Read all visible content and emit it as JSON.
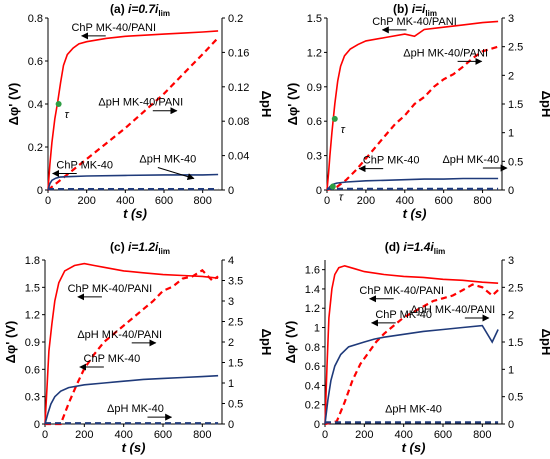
{
  "chart_data": [
    {
      "type": "line",
      "panel_label": "(a) ",
      "title_main": "i=0.7i",
      "title_sub": "lim",
      "xlabel": "t (s)",
      "ylabel": "Δφ' (V)",
      "y2label": "ΔpH",
      "xlim": [
        0,
        900
      ],
      "ylim": [
        0,
        0.8
      ],
      "y2lim": [
        0,
        0.2
      ],
      "xticks": [
        "0",
        "200",
        "400",
        "600",
        "800"
      ],
      "yticks": [
        "0",
        "0.2",
        "0.4",
        "0.6",
        "0.8"
      ],
      "y2ticks": [
        "0",
        "0.04",
        "0.08",
        "0.12",
        "0.16",
        "0.2"
      ],
      "grid": false,
      "series": [
        {
          "name": "ChP MK-40/PANI",
          "axis": "left",
          "color": "#ff0000",
          "style": "solid",
          "x": [
            0,
            10,
            20,
            35,
            50,
            65,
            80,
            100,
            130,
            160,
            200,
            300,
            400,
            500,
            600,
            700,
            800,
            880
          ],
          "y": [
            0,
            0.12,
            0.22,
            0.33,
            0.41,
            0.5,
            0.58,
            0.63,
            0.66,
            0.68,
            0.69,
            0.705,
            0.715,
            0.72,
            0.725,
            0.73,
            0.735,
            0.74
          ]
        },
        {
          "name": "ΔpH MK-40/PANI",
          "axis": "right",
          "color": "#ff0000",
          "style": "dashed",
          "x": [
            0,
            100,
            200,
            300,
            400,
            500,
            600,
            700,
            800,
            880
          ],
          "y": [
            0,
            0.018,
            0.036,
            0.054,
            0.072,
            0.092,
            0.112,
            0.135,
            0.158,
            0.177
          ]
        },
        {
          "name": "ChP MK-40",
          "axis": "left",
          "color": "#1f3a7a",
          "style": "solid",
          "x": [
            0,
            10,
            20,
            40,
            60,
            100,
            200,
            400,
            600,
            800,
            880
          ],
          "y": [
            0,
            0.03,
            0.045,
            0.055,
            0.06,
            0.062,
            0.065,
            0.068,
            0.07,
            0.07,
            0.072
          ]
        },
        {
          "name": "ΔpH MK-40",
          "axis": "right",
          "color": "#1f3a7a",
          "style": "dashed",
          "x": [
            0,
            880
          ],
          "y": [
            0.001,
            0.001
          ]
        }
      ],
      "markers": [
        {
          "label": "τ",
          "x": 55,
          "y": 0.4,
          "color": "#2e9e44"
        }
      ]
    },
    {
      "type": "line",
      "panel_label": "(b) ",
      "title_main": "i=i",
      "title_sub": "lim",
      "xlabel": "t (s)",
      "ylabel": "Δφ' (V)",
      "y2label": "ΔpH",
      "xlim": [
        0,
        900
      ],
      "ylim": [
        0,
        1.5
      ],
      "y2lim": [
        0,
        3
      ],
      "xticks": [
        "0",
        "200",
        "400",
        "600",
        "800"
      ],
      "yticks": [
        "0",
        "0.3",
        "0.6",
        "0.9",
        "1.2",
        "1.5"
      ],
      "y2ticks": [
        "0",
        "0.5",
        "1",
        "1.5",
        "2",
        "2.5",
        "3"
      ],
      "grid": false,
      "series": [
        {
          "name": "ChP MK-40/PANI",
          "axis": "left",
          "color": "#ff0000",
          "style": "solid",
          "x": [
            0,
            8,
            15,
            25,
            40,
            55,
            70,
            90,
            120,
            160,
            200,
            300,
            400,
            450,
            500,
            600,
            700,
            800,
            880
          ],
          "y": [
            0,
            0.15,
            0.3,
            0.5,
            0.75,
            0.95,
            1.08,
            1.17,
            1.23,
            1.27,
            1.3,
            1.33,
            1.36,
            1.34,
            1.4,
            1.42,
            1.44,
            1.46,
            1.47
          ]
        },
        {
          "name": "ΔpH MK-40/PANI",
          "axis": "right",
          "color": "#ff0000",
          "style": "dashed",
          "x": [
            0,
            50,
            100,
            150,
            200,
            250,
            300,
            350,
            400,
            450,
            500,
            550,
            600,
            650,
            700,
            750,
            800,
            880
          ],
          "y": [
            0,
            0.05,
            0.18,
            0.35,
            0.55,
            0.75,
            0.95,
            1.15,
            1.3,
            1.5,
            1.62,
            1.8,
            1.93,
            2.02,
            2.15,
            2.3,
            2.42,
            2.5
          ]
        },
        {
          "name": "ChP MK-40",
          "axis": "left",
          "color": "#1f3a7a",
          "style": "solid",
          "x": [
            0,
            15,
            30,
            50,
            100,
            200,
            300,
            400,
            500,
            600,
            700,
            800,
            880
          ],
          "y": [
            0,
            0.03,
            0.05,
            0.06,
            0.07,
            0.08,
            0.085,
            0.09,
            0.095,
            0.095,
            0.1,
            0.1,
            0.1
          ]
        },
        {
          "name": "ΔpH MK-40",
          "axis": "right",
          "color": "#1f3a7a",
          "style": "dashed",
          "x": [
            0,
            880
          ],
          "y": [
            0.02,
            0.02
          ]
        }
      ],
      "markers": [
        {
          "label": "τ",
          "x": 40,
          "y": 0.62,
          "color": "#2e9e44"
        },
        {
          "label": "τ",
          "x": 30,
          "y": 0.03,
          "color": "#2e9e44"
        }
      ]
    },
    {
      "type": "line",
      "panel_label": "(c) ",
      "title_main": "i=1.2i",
      "title_sub": "lim",
      "xlabel": "t (s)",
      "ylabel": "Δφ' (V)",
      "y2label": "ΔpH",
      "xlim": [
        0,
        900
      ],
      "ylim": [
        0,
        1.8
      ],
      "y2lim": [
        0,
        4
      ],
      "xticks": [
        "0",
        "200",
        "400",
        "600",
        "800"
      ],
      "yticks": [
        "0",
        "0.3",
        "0.6",
        "0.9",
        "1.2",
        "1.5",
        "1.8"
      ],
      "y2ticks": [
        "0",
        "0.5",
        "1",
        "1.5",
        "2",
        "2.5",
        "3",
        "3.5",
        "4"
      ],
      "grid": false,
      "series": [
        {
          "name": "ChP MK-40/PANI",
          "axis": "left",
          "color": "#ff0000",
          "style": "solid",
          "x": [
            0,
            10,
            20,
            35,
            50,
            70,
            100,
            150,
            200,
            250,
            300,
            400,
            500,
            600,
            700,
            800,
            880
          ],
          "y": [
            0,
            0.4,
            0.8,
            1.1,
            1.35,
            1.55,
            1.68,
            1.74,
            1.76,
            1.74,
            1.72,
            1.68,
            1.66,
            1.64,
            1.63,
            1.62,
            1.6
          ]
        },
        {
          "name": "ΔpH MK-40/PANI",
          "axis": "right",
          "color": "#ff0000",
          "style": "dashed",
          "x": [
            0,
            80,
            120,
            160,
            200,
            250,
            300,
            350,
            400,
            450,
            500,
            550,
            600,
            650,
            700,
            750,
            800,
            850,
            880
          ],
          "y": [
            0,
            0,
            0.5,
            0.95,
            1.35,
            1.7,
            2.0,
            2.2,
            2.4,
            2.6,
            2.8,
            3.0,
            3.25,
            3.35,
            3.55,
            3.6,
            3.75,
            3.5,
            3.6
          ]
        },
        {
          "name": "ChP MK-40",
          "axis": "left",
          "color": "#1f3a7a",
          "style": "solid",
          "x": [
            0,
            15,
            30,
            50,
            80,
            120,
            200,
            300,
            400,
            500,
            600,
            700,
            800,
            880
          ],
          "y": [
            0,
            0.12,
            0.22,
            0.3,
            0.36,
            0.4,
            0.43,
            0.45,
            0.47,
            0.49,
            0.5,
            0.51,
            0.52,
            0.53
          ]
        },
        {
          "name": "ΔpH MK-40",
          "axis": "right",
          "color": "#1f3a7a",
          "style": "dashed",
          "x": [
            0,
            880
          ],
          "y": [
            0.02,
            0.02
          ]
        }
      ],
      "markers": []
    },
    {
      "type": "line",
      "panel_label": "(d) ",
      "title_main": "i=1.4i",
      "title_sub": "lim",
      "xlabel": "t (s)",
      "ylabel": "Δφ' (V)",
      "y2label": "ΔpH",
      "xlim": [
        0,
        900
      ],
      "ylim": [
        0,
        1.7
      ],
      "y2lim": [
        0,
        3
      ],
      "xticks": [
        "0",
        "200",
        "400",
        "600",
        "800"
      ],
      "yticks": [
        "0",
        "0.2",
        "0.4",
        "0.6",
        "0.8",
        "1",
        "1.2",
        "1.4",
        "1.6"
      ],
      "y2ticks": [
        "0",
        "0.5",
        "1",
        "1.5",
        "2",
        "2.5",
        "3"
      ],
      "grid": false,
      "series": [
        {
          "name": "ChP MK-40/PANI",
          "axis": "left",
          "color": "#ff0000",
          "style": "solid",
          "x": [
            0,
            10,
            20,
            35,
            50,
            70,
            100,
            150,
            200,
            300,
            400,
            500,
            600,
            700,
            800,
            880
          ],
          "y": [
            0,
            0.6,
            1.1,
            1.4,
            1.55,
            1.62,
            1.64,
            1.61,
            1.58,
            1.55,
            1.53,
            1.52,
            1.5,
            1.49,
            1.47,
            1.46
          ]
        },
        {
          "name": "ΔpH MK-40/PANI",
          "axis": "right",
          "color": "#ff0000",
          "style": "dashed",
          "x": [
            0,
            60,
            100,
            140,
            180,
            220,
            260,
            300,
            350,
            400,
            450,
            500,
            550,
            600,
            650,
            700,
            750,
            800,
            850,
            880
          ],
          "y": [
            0,
            0.05,
            0.4,
            0.8,
            1.1,
            1.3,
            1.5,
            1.65,
            1.8,
            1.95,
            2.05,
            2.15,
            2.25,
            2.3,
            2.35,
            2.45,
            2.55,
            2.5,
            2.35,
            2.45
          ]
        },
        {
          "name": "ChP MK-40",
          "axis": "left",
          "color": "#1f3a7a",
          "style": "solid",
          "x": [
            0,
            15,
            30,
            50,
            80,
            120,
            200,
            250,
            300,
            400,
            500,
            600,
            700,
            800,
            850,
            880
          ],
          "y": [
            0,
            0.25,
            0.45,
            0.6,
            0.72,
            0.8,
            0.85,
            0.88,
            0.9,
            0.93,
            0.96,
            0.98,
            1.0,
            1.02,
            0.85,
            0.98
          ]
        },
        {
          "name": "ΔpH MK-40",
          "axis": "right",
          "color": "#1f3a7a",
          "style": "dashed",
          "x": [
            0,
            880
          ],
          "y": [
            0.03,
            0.03
          ]
        }
      ],
      "markers": []
    }
  ],
  "annotations": [
    [
      {
        "text": "ChP MK-40/PANI",
        "x": 340,
        "y": 0.74,
        "axis": "left",
        "arrow": "left"
      },
      {
        "text": "ΔpH MK-40/PANI",
        "x": 480,
        "y": 0.098,
        "axis": "right",
        "arrow": "right"
      },
      {
        "text": "ChP MK-40",
        "x": 190,
        "y": 0.1,
        "axis": "left",
        "arrow": "left"
      },
      {
        "text": "ΔpH MK-40",
        "x": 620,
        "y": 0.032,
        "axis": "right",
        "arrow": "right-down"
      }
    ],
    [
      {
        "text": "ChP MK-40/PANI",
        "x": 450,
        "y": 1.44,
        "axis": "left",
        "arrow": "left"
      },
      {
        "text": "ΔpH MK-40/PANI",
        "x": 610,
        "y": 2.33,
        "axis": "right",
        "arrow": "right"
      },
      {
        "text": "ChP MK-40",
        "x": 330,
        "y": 0.23,
        "axis": "left",
        "arrow": "left"
      },
      {
        "text": "ΔpH MK-40",
        "x": 740,
        "y": 0.47,
        "axis": "right",
        "arrow": "right"
      }
    ],
    [
      {
        "text": "ChP MK-40/PANI",
        "x": 330,
        "y": 1.45,
        "axis": "left",
        "arrow": "left"
      },
      {
        "text": "ΔpH MK-40/PANI",
        "x": 380,
        "y": 2.1,
        "axis": "right",
        "arrow": "right"
      },
      {
        "text": "ChP MK-40",
        "x": 340,
        "y": 0.68,
        "axis": "left",
        "arrow": "left"
      },
      {
        "text": "ΔpH MK-40",
        "x": 460,
        "y": 0.13,
        "axis": "left",
        "arrow": "right"
      }
    ],
    [
      {
        "text": "ChP MK-40/PANI",
        "x": 390,
        "y": 1.35,
        "axis": "left",
        "arrow": "left"
      },
      {
        "text": "ΔpH MK-40/PANI",
        "x": 650,
        "y": 2.03,
        "axis": "right",
        "arrow": "right"
      },
      {
        "text": "ChP MK-40",
        "x": 400,
        "y": 1.1,
        "axis": "left",
        "arrow": "left"
      },
      {
        "text": "ΔpH MK-40",
        "x": 450,
        "y": 0.12,
        "axis": "left",
        "arrow": "none"
      }
    ]
  ]
}
